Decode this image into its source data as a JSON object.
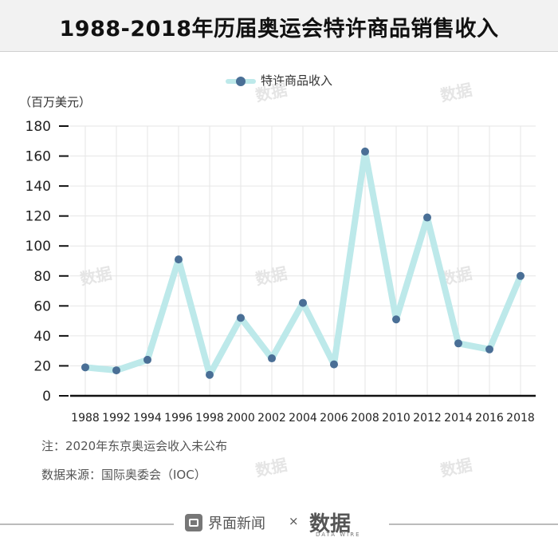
{
  "title": "1988-2018年历届奥运会特许商品销售收入",
  "unit_label": "（百万美元）",
  "notes": {
    "note1": "注：2020年东京奥运会收入未公布",
    "note2": "数据来源：国际奥委会（IOC）"
  },
  "footer": {
    "brand1": "界面新闻",
    "times": "×",
    "brand2": "数据",
    "brand2_sub": "DATA WIRE"
  },
  "watermark": "数据",
  "colors": {
    "line": "#bde9ea",
    "marker": "#4a6f96",
    "axis": "#111111",
    "grid": "#e6e6e6"
  },
  "chart_data": {
    "type": "line",
    "categories": [
      "1988",
      "1992",
      "1994",
      "1996",
      "1998",
      "2000",
      "2002",
      "2004",
      "2006",
      "2008",
      "2010",
      "2012",
      "2014",
      "2016",
      "2018"
    ],
    "series": [
      {
        "name": "特许商品收入",
        "values": [
          19,
          17,
          24,
          91,
          14,
          52,
          25,
          62,
          21,
          163,
          51,
          119,
          35,
          31,
          80
        ]
      }
    ],
    "ylim": [
      0,
      180
    ],
    "yticks": [
      0,
      20,
      40,
      60,
      80,
      100,
      120,
      140,
      160,
      180
    ],
    "grid": true,
    "legend": "top-center",
    "ylabel": "（百万美元）"
  }
}
